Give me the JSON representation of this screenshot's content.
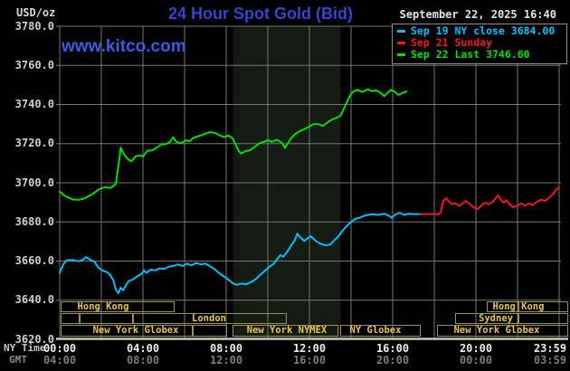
{
  "header": {
    "unit_label": "USD/oz",
    "title": "24 Hour Spot Gold (Bid)",
    "datetime": "September 22, 2025 16:40",
    "watermark": "www.kitco.com"
  },
  "legend": {
    "entries": [
      {
        "marker": "dash",
        "color": "#00bfff",
        "label": "Sep 19 NY close 3684.00"
      },
      {
        "marker": "dash",
        "color": "#ee1c1c",
        "label": "Sep 21 Sunday"
      },
      {
        "marker": "dash",
        "color": "#00dd00",
        "label": "Sep 22 Last 3746.60"
      }
    ]
  },
  "axes": {
    "x_label_ny": "NY Time",
    "x_label_gmt": "GMT",
    "ny_times": [
      "00:00",
      "04:00",
      "08:00",
      "12:00",
      "16:00",
      "20:00",
      "23:59"
    ],
    "gmt_times": [
      "04:00",
      "08:00",
      "12:00",
      "16:00",
      "20:00",
      "00:00",
      "03:59"
    ],
    "tick_hours": [
      0,
      4,
      8,
      12,
      16,
      20,
      24
    ],
    "y_ticks": [
      3780,
      3760,
      3740,
      3720,
      3700,
      3680,
      3660,
      3640,
      3620
    ]
  },
  "sessions": {
    "rows": [
      {
        "name": "asia",
        "boxes": [
          {
            "t1": 0.04,
            "t2": 5.5
          },
          {
            "t1": 20.52,
            "t2": 22.04
          },
          {
            "t1": 22.04,
            "t2": 24.45
          }
        ],
        "labels": [
          {
            "text": "Hong Kong",
            "t": 2.1
          },
          {
            "text": "Hong Kong",
            "t": 22.05
          }
        ]
      },
      {
        "name": "europe",
        "boxes": [
          {
            "t1": 0.04,
            "t2": 0.96
          },
          {
            "t1": 0.96,
            "t2": 3.52
          },
          {
            "t1": 3.52,
            "t2": 10.91
          },
          {
            "t1": 19.0,
            "t2": 22.04
          },
          {
            "t1": 22.04,
            "t2": 24.45
          }
        ],
        "labels": [
          {
            "text": "London",
            "t": 7.17
          },
          {
            "text": "Sydney",
            "t": 20.96
          }
        ]
      },
      {
        "name": "america",
        "boxes": [
          {
            "t1": 0.04,
            "t2": 6.39
          },
          {
            "t1": 6.39,
            "t2": 8.04
          },
          {
            "t1": 8.3,
            "t2": 13.39
          },
          {
            "t1": 13.48,
            "t2": 17.35
          },
          {
            "t1": 18.13,
            "t2": 24.45
          }
        ],
        "labels": [
          {
            "text": "New York Globex",
            "t": 3.65
          },
          {
            "text": "New York NYMEX",
            "t": 10.9
          },
          {
            "text": "NY Globex",
            "t": 15.17
          },
          {
            "text": "New York Globex",
            "t": 21.0
          }
        ]
      }
    ]
  },
  "chart_data": {
    "type": "line",
    "title": "24 Hour Spot Gold (Bid)",
    "ylabel": "USD/oz",
    "ylim": [
      3620,
      3780
    ],
    "y_tick_step": 20,
    "xlim_hours_ny": [
      0,
      24
    ],
    "grid": true,
    "highlight_band_hours": [
      8.33,
      13.5
    ],
    "legend_position": "top-right",
    "series": [
      {
        "name": "Sep 19 NY close",
        "color": "#00bfff",
        "close": 3684.0,
        "points": [
          [
            0,
            3654
          ],
          [
            0.17,
            3658.3
          ],
          [
            0.32,
            3660.3
          ],
          [
            0.6,
            3660.6
          ],
          [
            0.9,
            3659.9
          ],
          [
            1.1,
            3660.6
          ],
          [
            1.26,
            3662
          ],
          [
            1.5,
            3660.6
          ],
          [
            1.7,
            3659.4
          ],
          [
            1.85,
            3656.7
          ],
          [
            2.05,
            3655.2
          ],
          [
            2.27,
            3654.4
          ],
          [
            2.42,
            3652.9
          ],
          [
            2.57,
            3650.5
          ],
          [
            2.7,
            3645.4
          ],
          [
            2.82,
            3643.6
          ],
          [
            2.93,
            3646.4
          ],
          [
            3.05,
            3645.1
          ],
          [
            3.17,
            3647.4
          ],
          [
            3.32,
            3649.8
          ],
          [
            3.5,
            3650.5
          ],
          [
            3.72,
            3652.1
          ],
          [
            3.95,
            3653.6
          ],
          [
            4.05,
            3655.2
          ],
          [
            4.16,
            3654
          ],
          [
            4.38,
            3655.6
          ],
          [
            4.6,
            3655.2
          ],
          [
            4.8,
            3656.3
          ],
          [
            5.03,
            3656
          ],
          [
            5.25,
            3657.2
          ],
          [
            5.47,
            3657.5
          ],
          [
            5.68,
            3658.3
          ],
          [
            5.9,
            3657.5
          ],
          [
            6.12,
            3658.7
          ],
          [
            6.33,
            3657.8
          ],
          [
            6.55,
            3659
          ],
          [
            6.77,
            3658.3
          ],
          [
            7,
            3658.7
          ],
          [
            7.2,
            3657.5
          ],
          [
            7.42,
            3656
          ],
          [
            7.6,
            3654.4
          ],
          [
            7.78,
            3652.9
          ],
          [
            7.97,
            3651.6
          ],
          [
            8.15,
            3650.1
          ],
          [
            8.35,
            3648.5
          ],
          [
            8.53,
            3647.9
          ],
          [
            8.72,
            3648.5
          ],
          [
            8.95,
            3648.2
          ],
          [
            9.15,
            3649
          ],
          [
            9.4,
            3650.5
          ],
          [
            9.6,
            3652.6
          ],
          [
            9.8,
            3654.4
          ],
          [
            10.03,
            3656.7
          ],
          [
            10.25,
            3658.3
          ],
          [
            10.42,
            3660.6
          ],
          [
            10.6,
            3663
          ],
          [
            10.75,
            3662.2
          ],
          [
            10.97,
            3665.3
          ],
          [
            11.1,
            3667.6
          ],
          [
            11.3,
            3670.7
          ],
          [
            11.42,
            3674
          ],
          [
            11.55,
            3672.2
          ],
          [
            11.75,
            3670.2
          ],
          [
            11.9,
            3671.5
          ],
          [
            12.06,
            3672.7
          ],
          [
            12.35,
            3669.9
          ],
          [
            12.57,
            3668.7
          ],
          [
            12.78,
            3668
          ],
          [
            13,
            3668.4
          ],
          [
            13.2,
            3670.7
          ],
          [
            13.36,
            3672.2
          ],
          [
            13.58,
            3675.3
          ],
          [
            13.8,
            3678
          ],
          [
            14,
            3680
          ],
          [
            14.2,
            3681.5
          ],
          [
            14.45,
            3682.3
          ],
          [
            14.7,
            3683.4
          ],
          [
            15.03,
            3683.9
          ],
          [
            15.3,
            3683.6
          ],
          [
            15.6,
            3684.2
          ],
          [
            15.83,
            3683.1
          ],
          [
            15.97,
            3682
          ],
          [
            16.1,
            3683.6
          ],
          [
            16.33,
            3684.7
          ],
          [
            16.55,
            3683.6
          ],
          [
            16.77,
            3684.2
          ],
          [
            17,
            3684
          ],
          [
            17.35,
            3684
          ]
        ]
      },
      {
        "name": "Sep 21 Sunday",
        "color": "#ee1c1c",
        "points": [
          [
            17.35,
            3684
          ],
          [
            18.2,
            3684
          ],
          [
            18.3,
            3684.5
          ],
          [
            18.43,
            3690.7
          ],
          [
            18.58,
            3692.2
          ],
          [
            18.72,
            3690.2
          ],
          [
            18.87,
            3689.1
          ],
          [
            19,
            3689.5
          ],
          [
            19.23,
            3688.3
          ],
          [
            19.38,
            3689.5
          ],
          [
            19.5,
            3690.7
          ],
          [
            19.67,
            3689.5
          ],
          [
            19.88,
            3687.5
          ],
          [
            20.1,
            3686.7
          ],
          [
            20.25,
            3688.3
          ],
          [
            20.46,
            3689.9
          ],
          [
            20.6,
            3689.1
          ],
          [
            20.8,
            3690.2
          ],
          [
            20.97,
            3692.2
          ],
          [
            21.07,
            3693.7
          ],
          [
            21.2,
            3691.4
          ],
          [
            21.33,
            3689.9
          ],
          [
            21.48,
            3691.1
          ],
          [
            21.62,
            3689.1
          ],
          [
            21.77,
            3687.5
          ],
          [
            22,
            3688.3
          ],
          [
            22.2,
            3689.5
          ],
          [
            22.35,
            3688.3
          ],
          [
            22.57,
            3689.5
          ],
          [
            22.7,
            3688.6
          ],
          [
            22.93,
            3690.2
          ],
          [
            23.14,
            3691.4
          ],
          [
            23.3,
            3690.7
          ],
          [
            23.5,
            3692.2
          ],
          [
            23.73,
            3694.5
          ],
          [
            23.87,
            3696.8
          ],
          [
            23.97,
            3697.5
          ]
        ]
      },
      {
        "name": "Sep 22 Last",
        "color": "#00dd00",
        "last": 3746.6,
        "points": [
          [
            0,
            3695.5
          ],
          [
            0.25,
            3693.2
          ],
          [
            0.6,
            3691.6
          ],
          [
            0.9,
            3691.3
          ],
          [
            1.2,
            3692
          ],
          [
            1.6,
            3694.4
          ],
          [
            1.9,
            3696.7
          ],
          [
            2.2,
            3697.8
          ],
          [
            2.45,
            3697.3
          ],
          [
            2.7,
            3699.5
          ],
          [
            2.86,
            3711.8
          ],
          [
            2.93,
            3718
          ],
          [
            3.07,
            3714.9
          ],
          [
            3.3,
            3711.8
          ],
          [
            3.45,
            3711
          ],
          [
            3.65,
            3713.6
          ],
          [
            3.87,
            3714
          ],
          [
            4,
            3713.3
          ],
          [
            4.2,
            3716.3
          ],
          [
            4.45,
            3716.6
          ],
          [
            4.65,
            3717.8
          ],
          [
            4.87,
            3719.5
          ],
          [
            5.1,
            3719.8
          ],
          [
            5.3,
            3720.9
          ],
          [
            5.46,
            3723.3
          ],
          [
            5.6,
            3720.9
          ],
          [
            5.83,
            3720.2
          ],
          [
            6.05,
            3721.7
          ],
          [
            6.25,
            3721.2
          ],
          [
            6.4,
            3722.8
          ],
          [
            6.6,
            3723.6
          ],
          [
            6.85,
            3724.4
          ],
          [
            7.05,
            3725.3
          ],
          [
            7.25,
            3725.9
          ],
          [
            7.5,
            3725.3
          ],
          [
            7.7,
            3724.2
          ],
          [
            7.9,
            3723.3
          ],
          [
            8.1,
            3724.2
          ],
          [
            8.3,
            3722.8
          ],
          [
            8.5,
            3718.6
          ],
          [
            8.6,
            3716.3
          ],
          [
            8.72,
            3714.9
          ],
          [
            8.95,
            3716.3
          ],
          [
            9.15,
            3716.6
          ],
          [
            9.4,
            3718.6
          ],
          [
            9.6,
            3720.2
          ],
          [
            9.8,
            3720.9
          ],
          [
            10,
            3721.7
          ],
          [
            10.2,
            3720.9
          ],
          [
            10.45,
            3722
          ],
          [
            10.7,
            3720.2
          ],
          [
            10.82,
            3717.8
          ],
          [
            11.1,
            3722.5
          ],
          [
            11.3,
            3724.8
          ],
          [
            11.55,
            3726.4
          ],
          [
            11.78,
            3727.5
          ],
          [
            12,
            3728.8
          ],
          [
            12.2,
            3730
          ],
          [
            12.4,
            3730
          ],
          [
            12.65,
            3729.1
          ],
          [
            12.85,
            3730.7
          ],
          [
            13.05,
            3732.2
          ],
          [
            13.3,
            3733.2
          ],
          [
            13.5,
            3734.3
          ],
          [
            13.7,
            3738.9
          ],
          [
            13.87,
            3742.8
          ],
          [
            14.05,
            3746.2
          ],
          [
            14.3,
            3747.5
          ],
          [
            14.55,
            3746.4
          ],
          [
            14.8,
            3747.8
          ],
          [
            15,
            3746.8
          ],
          [
            15.2,
            3747.2
          ],
          [
            15.4,
            3746.2
          ],
          [
            15.6,
            3744.3
          ],
          [
            15.9,
            3747.4
          ],
          [
            16.1,
            3746.6
          ],
          [
            16.26,
            3744.9
          ],
          [
            16.5,
            3746
          ],
          [
            16.67,
            3746.6
          ]
        ]
      }
    ]
  },
  "colors": {
    "background": "#000000",
    "grid": "#767676",
    "band": "#131b13",
    "axis_line": "#c8c8bc",
    "session_border": "#9a914f",
    "session_text": "#e8c455",
    "title_blue": "#3545cc",
    "watermark_blue": "#3f5ade"
  }
}
